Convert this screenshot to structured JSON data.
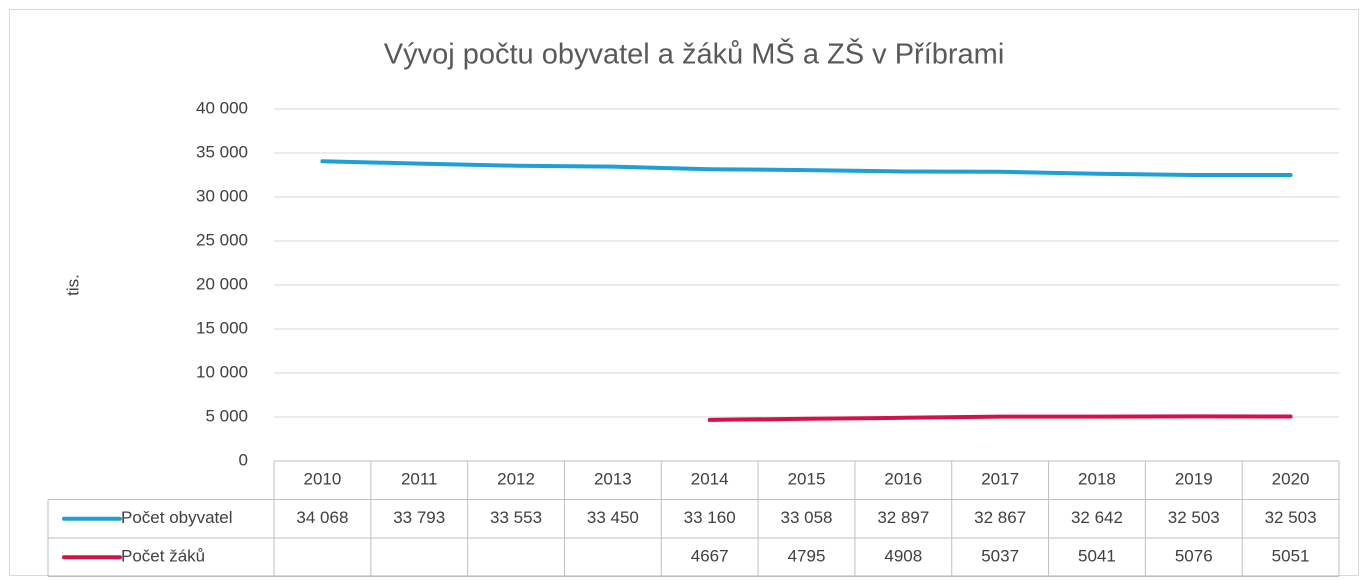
{
  "chart_data": {
    "type": "line",
    "title": "Vývoj počtu obyvatel a žáků MŠ a ZŠ v Příbrami",
    "y_label": "tis.",
    "categories": [
      "2010",
      "2011",
      "2012",
      "2013",
      "2014",
      "2015",
      "2016",
      "2017",
      "2018",
      "2019",
      "2020"
    ],
    "series": [
      {
        "name": "Počet obyvatel",
        "color": "#1e9fd8",
        "values": [
          34068,
          33793,
          33553,
          33450,
          33160,
          33058,
          32897,
          32867,
          32642,
          32503,
          32503
        ],
        "value_labels": [
          "34 068",
          "33 793",
          "33 553",
          "33 450",
          "33 160",
          "33 058",
          "32 897",
          "32 867",
          "32 642",
          "32 503",
          "32 503"
        ]
      },
      {
        "name": "Počet žáků",
        "color": "#d5114c",
        "values": [
          null,
          null,
          null,
          null,
          4667,
          4795,
          4908,
          5037,
          5041,
          5076,
          5051
        ]
      }
    ],
    "ylim": [
      0,
      40000
    ],
    "yticks": [
      0,
      {
        "value": 5000,
        "label": "5 000"
      },
      {
        "value": 10000,
        "label": "10 000"
      },
      {
        "value": 15000,
        "label": "15 000"
      },
      {
        "value": 20000,
        "label": "20 000"
      },
      {
        "value": 25000,
        "label": "25 000"
      },
      {
        "value": 30000,
        "label": "30 000"
      },
      {
        "value": 35000,
        "label": "35 000"
      },
      {
        "value": 40000,
        "label": "40 000"
      }
    ],
    "grid": true
  }
}
